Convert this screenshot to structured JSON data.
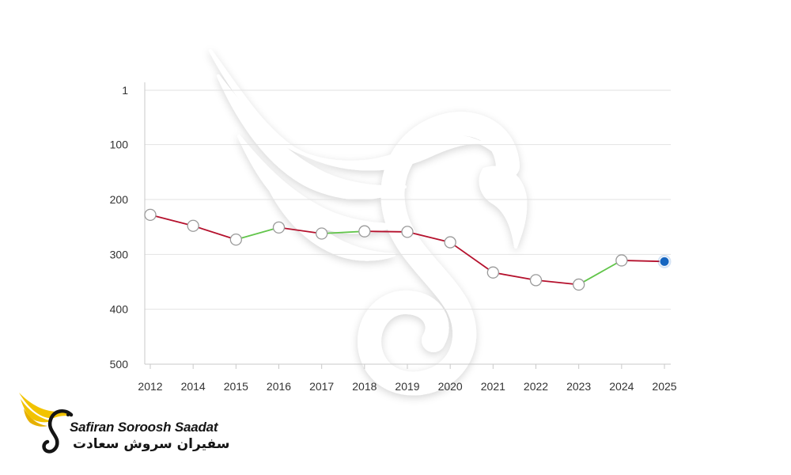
{
  "chart_data": {
    "type": "line",
    "title": "",
    "xlabel": "",
    "ylabel": "",
    "categories": [
      "2012",
      "2014",
      "2015",
      "2016",
      "2017",
      "2018",
      "2019",
      "2020",
      "2021",
      "2022",
      "2023",
      "2024",
      "2025"
    ],
    "series": [
      {
        "values": [
          228,
          248,
          273,
          251,
          262,
          258,
          259,
          278,
          333,
          347,
          355,
          311,
          313
        ]
      }
    ],
    "y_ticks": [
      1,
      100,
      200,
      300,
      400,
      500
    ],
    "ylim": [
      1,
      500
    ],
    "y_inverted": true,
    "grid": true,
    "legend": "none",
    "colors": {
      "worse": "#b5112d",
      "better": "#62c54b",
      "marker_fill": "#ffffff",
      "marker_stroke": "#9a9a9a",
      "current_marker": "#1565c0",
      "grid": "#e2e2e2",
      "axis": "#c9c9c9",
      "tick_text": "#333333"
    }
  },
  "logo": {
    "name_en": "Safiran Soroosh Saadat",
    "name_fa": "سفیران سروش سعادت",
    "icon": "golden-bird-logo-icon",
    "colors": {
      "wing": "#f2c300",
      "ink": "#151515"
    }
  },
  "watermark": {
    "icon": "bird-watermark-icon"
  }
}
